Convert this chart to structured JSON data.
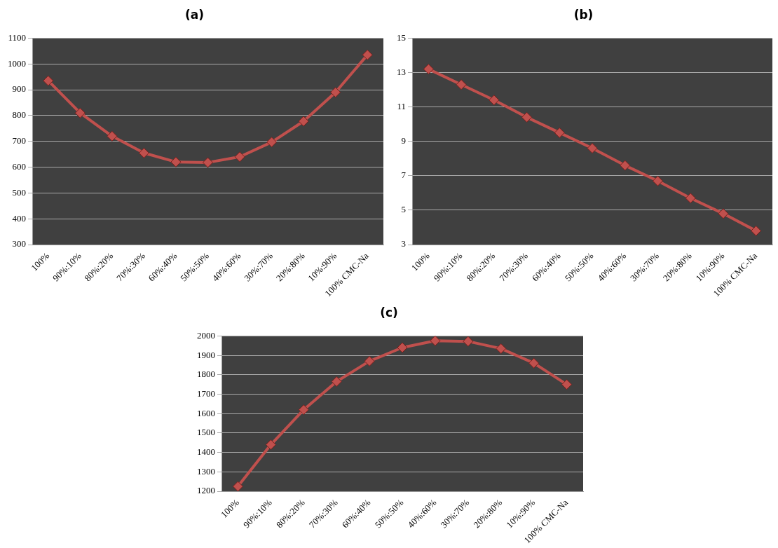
{
  "chart_data": [
    {
      "type": "line",
      "title": "(a)",
      "categories": [
        "100%",
        "90%:10%",
        "80%:20%",
        "70%:30%",
        "60%:40%",
        "50%:50%",
        "40%:60%",
        "30%:70%",
        "20%:80%",
        "10%:90%",
        "100% CMC-Na"
      ],
      "series": [
        {
          "color": "#c0504d",
          "values": [
            935,
            810,
            720,
            655,
            620,
            618,
            640,
            697,
            778,
            890,
            1035
          ]
        }
      ],
      "ylim": [
        300,
        1100
      ],
      "yticks": [
        300,
        400,
        500,
        600,
        700,
        800,
        900,
        1000,
        1100
      ],
      "grid": "y",
      "legend": false,
      "marker": "diamond",
      "line_style": "solid"
    },
    {
      "type": "line",
      "title": "(b)",
      "categories": [
        "100%",
        "90%:10%",
        "80%:20%",
        "70%:30%",
        "60%:40%",
        "50%:50%",
        "40%:60%",
        "30%:70%",
        "20%:80%",
        "10%:90%",
        "100% CMC-Na"
      ],
      "series": [
        {
          "color": "#c0504d",
          "values": [
            13.2,
            12.3,
            11.4,
            10.4,
            9.5,
            8.6,
            7.6,
            6.7,
            5.7,
            4.8,
            3.8
          ]
        }
      ],
      "ylim": [
        3,
        15
      ],
      "yticks": [
        3,
        5,
        7,
        9,
        11,
        13,
        15
      ],
      "grid": "y",
      "legend": false,
      "marker": "diamond",
      "line_style": "solid"
    },
    {
      "type": "line",
      "title": "(c)",
      "categories": [
        "100%",
        "90%:10%",
        "80%:20%",
        "70%:30%",
        "60%:40%",
        "50%:50%",
        "40%:60%",
        "30%:70%",
        "20%:80%",
        "10%:90%",
        "100% CMC-Na"
      ],
      "series": [
        {
          "color": "#c0504d",
          "values": [
            1225,
            1440,
            1620,
            1765,
            1870,
            1940,
            1975,
            1972,
            1935,
            1860,
            1750
          ]
        }
      ],
      "ylim": [
        1200,
        2000
      ],
      "yticks": [
        1200,
        1300,
        1400,
        1500,
        1600,
        1700,
        1800,
        1900,
        2000
      ],
      "grid": "y",
      "legend": false,
      "marker": "diamond",
      "line_style": "solid"
    }
  ]
}
